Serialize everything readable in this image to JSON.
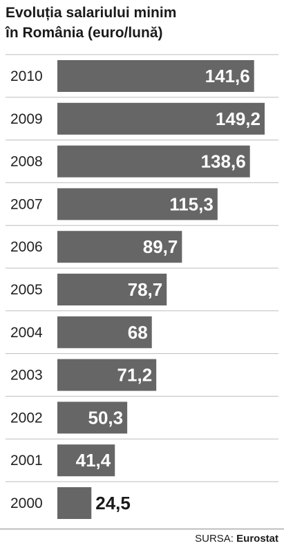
{
  "chart_data": {
    "type": "bar",
    "orientation": "horizontal",
    "title_lines": [
      "Evoluția salariului minim",
      "în România (euro/lună)"
    ],
    "categories": [
      "2010",
      "2009",
      "2008",
      "2007",
      "2006",
      "2005",
      "2004",
      "2003",
      "2002",
      "2001",
      "2000"
    ],
    "values": [
      141.6,
      149.2,
      138.6,
      115.3,
      89.7,
      78.7,
      68,
      71.2,
      50.3,
      41.4,
      24.5
    ],
    "value_labels": [
      "141,6",
      "149,2",
      "138,6",
      "115,3",
      "89,7",
      "78,7",
      "68",
      "71,2",
      "50,3",
      "41,4",
      "24,5"
    ],
    "xlim": [
      0,
      149.2
    ],
    "bar_color": "#666666",
    "separator_color": "#bdbdbd",
    "grid": false
  },
  "source": {
    "label": "SURSA:",
    "value": "Eurostat"
  }
}
